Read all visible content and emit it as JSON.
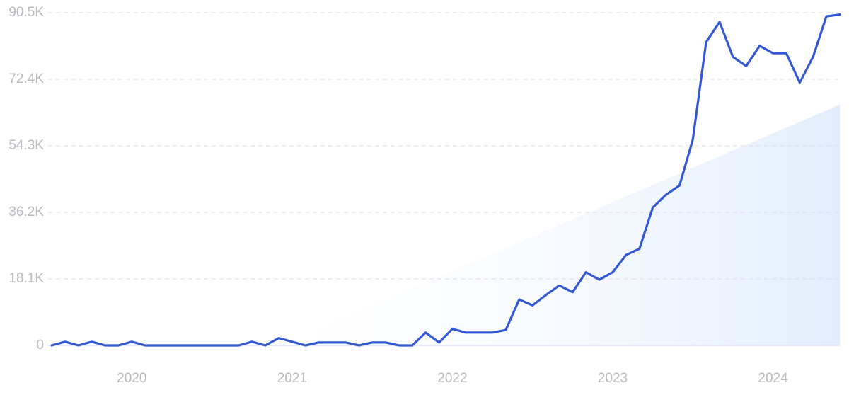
{
  "chart_data": {
    "type": "line",
    "x": [
      2019.5,
      2019.583,
      2019.667,
      2019.75,
      2019.833,
      2019.917,
      2020.0,
      2020.083,
      2020.167,
      2020.25,
      2020.333,
      2020.417,
      2020.5,
      2020.583,
      2020.667,
      2020.75,
      2020.833,
      2020.917,
      2021.0,
      2021.083,
      2021.167,
      2021.25,
      2021.333,
      2021.417,
      2021.5,
      2021.583,
      2021.667,
      2021.75,
      2021.833,
      2021.917,
      2022.0,
      2022.083,
      2022.167,
      2022.25,
      2022.333,
      2022.417,
      2022.5,
      2022.583,
      2022.667,
      2022.75,
      2022.833,
      2022.917,
      2023.0,
      2023.083,
      2023.167,
      2023.25,
      2023.333,
      2023.417,
      2023.5,
      2023.583,
      2023.667,
      2023.75,
      2023.833,
      2023.917,
      2024.0,
      2024.083,
      2024.167,
      2024.25,
      2024.333,
      2024.417
    ],
    "series": [
      {
        "color": "#3358d4",
        "values": [
          0,
          1000,
          0,
          1000,
          0,
          0,
          1000,
          0,
          0,
          0,
          0,
          0,
          0,
          0,
          0,
          1000,
          0,
          2000,
          1000,
          0,
          800,
          800,
          800,
          0,
          800,
          800,
          0,
          0,
          3500,
          800,
          4500,
          3500,
          3500,
          3500,
          4200,
          12500,
          10900,
          13700,
          16300,
          14500,
          19900,
          17900,
          19900,
          24600,
          26300,
          37500,
          41000,
          43500,
          56000,
          82500,
          88000,
          78500,
          76000,
          81500,
          79500,
          79500,
          71500,
          78500,
          89500,
          90000
        ]
      }
    ],
    "trend": {
      "x": [
        2020.917,
        2024.417
      ],
      "values": [
        0,
        65500
      ],
      "color": "#e2edfc"
    },
    "xlim": [
      2019.5,
      2024.417
    ],
    "xticks": [
      2020,
      2021,
      2022,
      2023,
      2024
    ],
    "ylim": [
      0,
      90500
    ],
    "yticks": [
      0,
      {
        "value": 18100,
        "label": "18.1K"
      },
      {
        "value": 36200,
        "label": "36.2K"
      },
      {
        "value": 54300,
        "label": "54.3K"
      },
      {
        "value": 72400,
        "label": "72.4K"
      },
      {
        "value": 90500,
        "label": "90.5K"
      }
    ],
    "grid": true
  }
}
